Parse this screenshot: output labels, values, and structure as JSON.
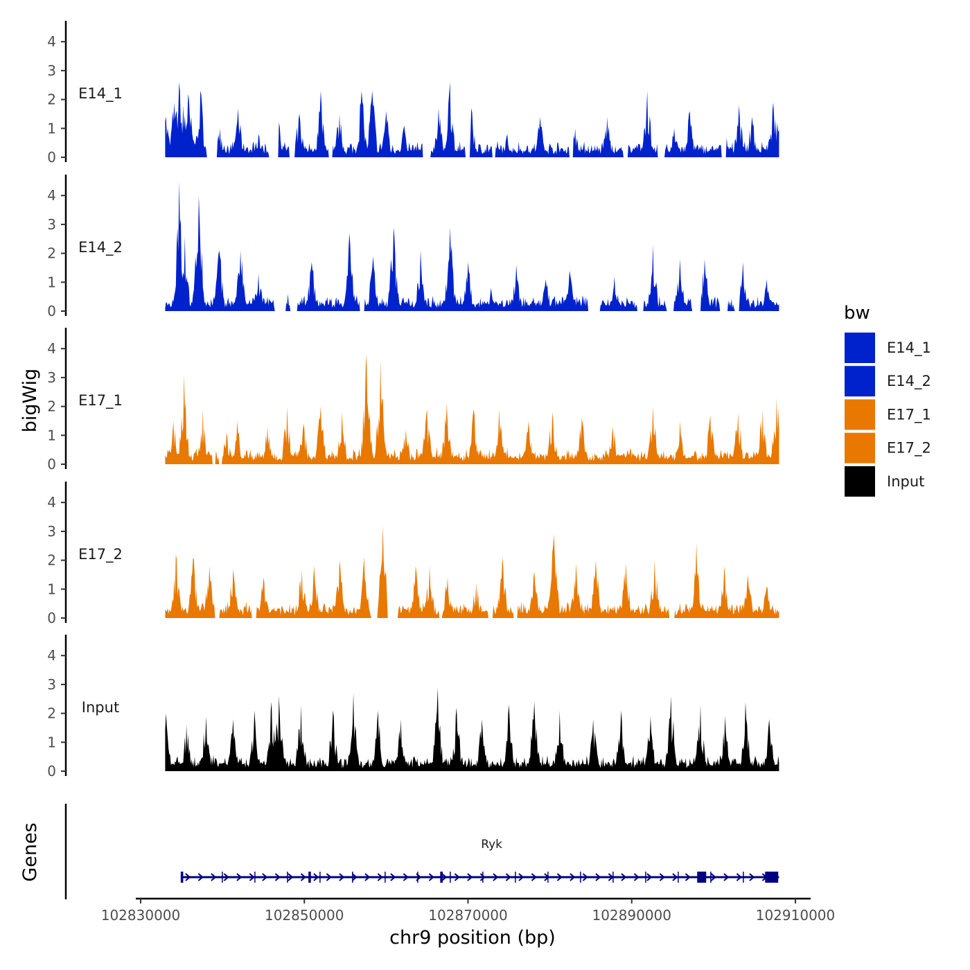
{
  "chart_data": {
    "type": "area",
    "title": "",
    "xlabel": "chr9 position (bp)",
    "ylabel": "bigWig",
    "genes_panel_label": "Genes",
    "xlim": [
      102829500,
      102910500
    ],
    "ylim": [
      0,
      4.7
    ],
    "x_ticks": [
      102830000,
      102850000,
      102870000,
      102890000,
      102910000
    ],
    "x_tick_labels": [
      "102830000",
      "102850000",
      "102870000",
      "102890000",
      "102910000"
    ],
    "y_ticks": [
      0,
      1,
      2,
      3,
      4
    ],
    "y_tick_labels": [
      "0",
      "1",
      "2",
      "3",
      "4"
    ],
    "data_range": [
      102833000,
      102908000
    ],
    "legend": {
      "title": "bw",
      "placement": "right",
      "entries": [
        {
          "label": "E14_1",
          "color": "#0022CC"
        },
        {
          "label": "E14_2",
          "color": "#0022CC"
        },
        {
          "label": "E17_1",
          "color": "#E87800"
        },
        {
          "label": "E17_2",
          "color": "#E87800"
        },
        {
          "label": "Input",
          "color": "#000000"
        }
      ]
    },
    "series": [
      {
        "name": "E14_1",
        "color": "#0022CC",
        "peaks": [
          [
            102833100,
            1.4
          ],
          [
            102834100,
            1.9
          ],
          [
            102834700,
            2.6
          ],
          [
            102835200,
            1.8
          ],
          [
            102835800,
            2.2
          ],
          [
            102836200,
            1.4
          ],
          [
            102837300,
            2.3
          ],
          [
            102839700,
            1.0
          ],
          [
            102841900,
            1.7
          ],
          [
            102844400,
            0.8
          ],
          [
            102846900,
            1.2
          ],
          [
            102849400,
            1.5
          ],
          [
            102852000,
            2.3
          ],
          [
            102854300,
            1.5
          ],
          [
            102857000,
            2.3
          ],
          [
            102858300,
            2.3
          ],
          [
            102860000,
            1.6
          ],
          [
            102862200,
            1.1
          ],
          [
            102866400,
            1.7
          ],
          [
            102867800,
            2.6
          ],
          [
            102870400,
            1.7
          ],
          [
            102874800,
            0.8
          ],
          [
            102878800,
            1.4
          ],
          [
            102883100,
            1.0
          ],
          [
            102887000,
            1.4
          ],
          [
            102891900,
            2.3
          ],
          [
            102895200,
            1.0
          ],
          [
            102897100,
            1.6
          ],
          [
            102901300,
            1.2
          ],
          [
            102903100,
            1.8
          ],
          [
            102904700,
            1.4
          ],
          [
            102907300,
            1.9
          ],
          [
            102907800,
            1.2
          ]
        ],
        "gaps": [
          [
            102838100,
            102839300
          ],
          [
            102845700,
            102846800
          ],
          [
            102848200,
            102848800
          ],
          [
            102853000,
            102853400
          ],
          [
            102864500,
            102865400
          ],
          [
            102869700,
            102870200
          ],
          [
            102873000,
            102873300
          ],
          [
            102882400,
            102882800
          ],
          [
            102889000,
            102889500
          ],
          [
            102893200,
            102894000
          ],
          [
            102901000,
            102901500
          ]
        ]
      },
      {
        "name": "E14_2",
        "color": "#0022CC",
        "peaks": [
          [
            102834700,
            4.5
          ],
          [
            102835400,
            2.6
          ],
          [
            102837100,
            4.0
          ],
          [
            102839600,
            2.1
          ],
          [
            102842200,
            2.1
          ],
          [
            102844400,
            1.3
          ],
          [
            102848000,
            0.6
          ],
          [
            102850900,
            1.7
          ],
          [
            102855500,
            2.7
          ],
          [
            102858400,
            1.9
          ],
          [
            102860900,
            2.9
          ],
          [
            102864200,
            2.1
          ],
          [
            102867800,
            2.9
          ],
          [
            102870000,
            1.7
          ],
          [
            102872800,
            0.8
          ],
          [
            102875900,
            1.6
          ],
          [
            102879500,
            1.1
          ],
          [
            102882400,
            1.4
          ],
          [
            102887900,
            1.2
          ],
          [
            102892600,
            2.3
          ],
          [
            102895900,
            1.8
          ],
          [
            102898900,
            1.8
          ],
          [
            102903600,
            1.7
          ],
          [
            102906500,
            1.1
          ]
        ],
        "gaps": [
          [
            102846400,
            102847700
          ],
          [
            102848300,
            102849100
          ],
          [
            102856800,
            102857300
          ],
          [
            102884700,
            102886100
          ],
          [
            102890700,
            102891400
          ],
          [
            102894300,
            102895100
          ],
          [
            102897400,
            102898400
          ],
          [
            102900800,
            102901700
          ],
          [
            102902600,
            102903100
          ]
        ]
      },
      {
        "name": "E17_1",
        "color": "#E87800",
        "peaks": [
          [
            102834000,
            1.5
          ],
          [
            102835300,
            3.1
          ],
          [
            102837600,
            1.9
          ],
          [
            102840500,
            1.1
          ],
          [
            102841800,
            1.5
          ],
          [
            102845500,
            1.3
          ],
          [
            102847900,
            2.0
          ],
          [
            102849900,
            1.4
          ],
          [
            102852000,
            2.0
          ],
          [
            102854600,
            1.8
          ],
          [
            102857600,
            3.8
          ],
          [
            102859300,
            3.6
          ],
          [
            102862400,
            1.2
          ],
          [
            102865000,
            1.9
          ],
          [
            102867400,
            2.1
          ],
          [
            102870700,
            1.9
          ],
          [
            102873800,
            1.9
          ],
          [
            102877400,
            1.5
          ],
          [
            102880300,
            1.8
          ],
          [
            102883900,
            1.6
          ],
          [
            102887700,
            1.3
          ],
          [
            102892600,
            2.0
          ],
          [
            102895900,
            1.5
          ],
          [
            102899600,
            1.7
          ],
          [
            102903000,
            1.8
          ],
          [
            102906000,
            1.9
          ],
          [
            102907700,
            2.3
          ]
        ],
        "gaps": [
          [
            102838800,
            102839100
          ],
          [
            102839600,
            102839900
          ]
        ]
      },
      {
        "name": "E17_2",
        "color": "#E87800",
        "peaks": [
          [
            102834300,
            2.2
          ],
          [
            102836400,
            2.1
          ],
          [
            102838400,
            1.8
          ],
          [
            102841300,
            1.7
          ],
          [
            102845000,
            1.4
          ],
          [
            102849700,
            1.7
          ],
          [
            102851200,
            1.8
          ],
          [
            102854300,
            2.0
          ],
          [
            102857300,
            2.1
          ],
          [
            102859600,
            3.2
          ],
          [
            102863600,
            1.8
          ],
          [
            102865300,
            1.8
          ],
          [
            102867500,
            1.4
          ],
          [
            102871000,
            1.2
          ],
          [
            102874200,
            2.1
          ],
          [
            102878100,
            1.6
          ],
          [
            102880500,
            2.9
          ],
          [
            102883200,
            1.9
          ],
          [
            102885600,
            2.0
          ],
          [
            102889300,
            1.9
          ],
          [
            102892800,
            2.0
          ],
          [
            102897900,
            2.6
          ],
          [
            102901300,
            1.8
          ],
          [
            102904200,
            1.5
          ],
          [
            102906500,
            1.1
          ]
        ],
        "gaps": [
          [
            102839100,
            102839600
          ],
          [
            102843600,
            102844100
          ],
          [
            102858200,
            102858900
          ],
          [
            102860200,
            102861400
          ],
          [
            102866500,
            102866800
          ],
          [
            102872500,
            102873000
          ],
          [
            102875600,
            102876000
          ],
          [
            102894600,
            102895200
          ]
        ]
      },
      {
        "name": "Input",
        "color": "#000000",
        "peaks": [
          [
            102833100,
            2.0
          ],
          [
            102835600,
            1.6
          ],
          [
            102838000,
            1.9
          ],
          [
            102841300,
            1.8
          ],
          [
            102843900,
            2.1
          ],
          [
            102846000,
            2.4
          ],
          [
            102846900,
            2.6
          ],
          [
            102849600,
            2.3
          ],
          [
            102853500,
            2.1
          ],
          [
            102856000,
            2.7
          ],
          [
            102859000,
            2.1
          ],
          [
            102861800,
            1.8
          ],
          [
            102866300,
            2.9
          ],
          [
            102868600,
            2.2
          ],
          [
            102871700,
            1.8
          ],
          [
            102875000,
            2.3
          ],
          [
            102878100,
            2.4
          ],
          [
            102881200,
            2.1
          ],
          [
            102885300,
            1.8
          ],
          [
            102888700,
            2.1
          ],
          [
            102892300,
            1.9
          ],
          [
            102894800,
            2.6
          ],
          [
            102898400,
            2.3
          ],
          [
            102901400,
            1.9
          ],
          [
            102903900,
            2.4
          ],
          [
            102906800,
            1.8
          ]
        ],
        "gaps": []
      }
    ],
    "genes": [
      {
        "name": "Ryk",
        "start": 102834900,
        "end": 102908000,
        "strand": "+",
        "color": "#000080",
        "exons": [
          [
            102834900,
            102835200
          ],
          [
            102850500,
            102850800
          ],
          [
            102866600,
            102866900
          ],
          [
            102898000,
            102899100
          ],
          [
            102906300,
            102907900
          ]
        ]
      }
    ]
  }
}
